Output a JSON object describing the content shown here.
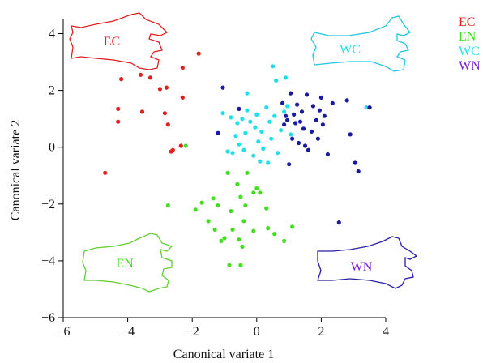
{
  "chart_data": {
    "type": "scatter",
    "xlabel": "Canonical variate 1",
    "ylabel": "Canonical variate 2",
    "xlim": [
      -6,
      4
    ],
    "ylim": [
      -6,
      4.5
    ],
    "xticks": [
      -6,
      -4,
      -2,
      0,
      2,
      4
    ],
    "yticks": [
      -6,
      -4,
      -2,
      0,
      2,
      4
    ],
    "xtick_labels": [
      "−6",
      "−4",
      "−2",
      "0",
      "2",
      "4"
    ],
    "ytick_labels": [
      "−6",
      "−4",
      "−2",
      "0",
      "2",
      "4"
    ],
    "grid": false,
    "legend_position": "top-right",
    "series": [
      {
        "name": "EC",
        "color": "#e02020",
        "points": [
          [
            -4.7,
            -0.9
          ],
          [
            -4.3,
            1.35
          ],
          [
            -4.3,
            0.9
          ],
          [
            -4.2,
            2.4
          ],
          [
            -3.6,
            2.55
          ],
          [
            -3.55,
            1.25
          ],
          [
            -3.3,
            2.45
          ],
          [
            -3.0,
            2.05
          ],
          [
            -2.85,
            1.2
          ],
          [
            -2.8,
            2.1
          ],
          [
            -2.75,
            0.8
          ],
          [
            -2.65,
            -0.15
          ],
          [
            -2.6,
            -0.1
          ],
          [
            -2.35,
            0.05
          ],
          [
            -2.3,
            1.75
          ],
          [
            -2.3,
            2.8
          ],
          [
            -1.8,
            3.3
          ]
        ]
      },
      {
        "name": "EN",
        "color": "#44dd22",
        "points": [
          [
            -2.2,
            0.05
          ],
          [
            -2.75,
            -2.05
          ],
          [
            -1.9,
            -2.2
          ],
          [
            -1.7,
            -1.95
          ],
          [
            -1.5,
            -2.6
          ],
          [
            -1.35,
            -1.8
          ],
          [
            -1.3,
            -2.9
          ],
          [
            -1.2,
            -2.05
          ],
          [
            -1.1,
            -3.3
          ],
          [
            -1.0,
            -3.2
          ],
          [
            -0.9,
            -0.9
          ],
          [
            -0.85,
            -4.15
          ],
          [
            -0.8,
            -2.25
          ],
          [
            -0.75,
            -2.9
          ],
          [
            -0.6,
            -1.3
          ],
          [
            -0.55,
            -3.25
          ],
          [
            -0.5,
            -4.15
          ],
          [
            -0.5,
            -1.75
          ],
          [
            -0.45,
            -3.5
          ],
          [
            -0.4,
            -2.6
          ],
          [
            -0.35,
            -2.05
          ],
          [
            -0.3,
            -0.9
          ],
          [
            -0.1,
            -2.95
          ],
          [
            -0.1,
            -1.6
          ],
          [
            0.0,
            -1.45
          ],
          [
            0.1,
            -1.6
          ],
          [
            0.3,
            -2.15
          ],
          [
            0.35,
            -2.85
          ],
          [
            0.55,
            -3.05
          ],
          [
            0.85,
            -3.3
          ],
          [
            1.1,
            -2.8
          ]
        ]
      },
      {
        "name": "WC",
        "color": "#22e0e8",
        "points": [
          [
            -1.05,
            1.2
          ],
          [
            -0.9,
            -0.15
          ],
          [
            -0.8,
            1.05
          ],
          [
            -0.75,
            -0.2
          ],
          [
            -0.65,
            0.4
          ],
          [
            -0.6,
            0.85
          ],
          [
            -0.55,
            0.1
          ],
          [
            -0.45,
            1.0
          ],
          [
            -0.4,
            -0.1
          ],
          [
            -0.35,
            0.5
          ],
          [
            -0.3,
            1.3
          ],
          [
            -0.3,
            1.9
          ],
          [
            -0.2,
            0.9
          ],
          [
            -0.1,
            -0.3
          ],
          [
            -0.05,
            0.7
          ],
          [
            0.0,
            1.15
          ],
          [
            0.05,
            0.2
          ],
          [
            0.1,
            -0.5
          ],
          [
            0.15,
            0.55
          ],
          [
            0.2,
            -0.05
          ],
          [
            0.3,
            1.4
          ],
          [
            0.35,
            -0.55
          ],
          [
            0.4,
            0.9
          ],
          [
            0.45,
            0.3
          ],
          [
            0.5,
            2.85
          ],
          [
            0.55,
            1.1
          ],
          [
            0.6,
            2.35
          ],
          [
            0.65,
            -0.2
          ],
          [
            0.75,
            0.6
          ],
          [
            0.85,
            1.25
          ],
          [
            0.9,
            2.45
          ],
          [
            0.95,
            1.45
          ],
          [
            1.05,
            0.45
          ],
          [
            3.4,
            1.4
          ]
        ]
      },
      {
        "name": "WN",
        "color": "#1a1aa0",
        "points": [
          [
            -1.05,
            2.1
          ],
          [
            -1.2,
            0.5
          ],
          [
            -0.55,
            1.35
          ],
          [
            0.8,
            1.55
          ],
          [
            0.85,
            0.8
          ],
          [
            0.9,
            1.1
          ],
          [
            0.95,
            0.95
          ],
          [
            1.0,
            -0.6
          ],
          [
            1.05,
            1.9
          ],
          [
            1.1,
            0.3
          ],
          [
            1.15,
            1.15
          ],
          [
            1.2,
            0.85
          ],
          [
            1.25,
            1.5
          ],
          [
            1.3,
            0.15
          ],
          [
            1.35,
            0.9
          ],
          [
            1.4,
            1.25
          ],
          [
            1.45,
            0.65
          ],
          [
            1.5,
            0.05
          ],
          [
            1.55,
            1.85
          ],
          [
            1.6,
            -0.1
          ],
          [
            1.7,
            0.55
          ],
          [
            1.75,
            1.45
          ],
          [
            1.85,
            0.95
          ],
          [
            1.9,
            0.3
          ],
          [
            1.95,
            1.3
          ],
          [
            2.0,
            1.75
          ],
          [
            2.05,
            0.8
          ],
          [
            2.1,
            1.1
          ],
          [
            2.2,
            -0.25
          ],
          [
            2.35,
            1.55
          ],
          [
            2.55,
            -2.65
          ],
          [
            2.8,
            1.65
          ],
          [
            2.9,
            0.45
          ],
          [
            3.05,
            -0.55
          ],
          [
            3.15,
            -0.85
          ],
          [
            3.5,
            1.4
          ]
        ]
      }
    ],
    "outline_labels": [
      {
        "text": "EC",
        "color": "#e02020"
      },
      {
        "text": "EN",
        "color": "#44dd22"
      },
      {
        "text": "WC",
        "color": "#22e0e8"
      },
      {
        "text": "WN",
        "color": "#7a22d0"
      }
    ],
    "legend": [
      {
        "name": "EC",
        "color": "#e02020"
      },
      {
        "name": "EN",
        "color": "#44dd22"
      },
      {
        "name": "WC",
        "color": "#22e0e8"
      },
      {
        "name": "WN",
        "color": "#7a22d0"
      }
    ]
  }
}
